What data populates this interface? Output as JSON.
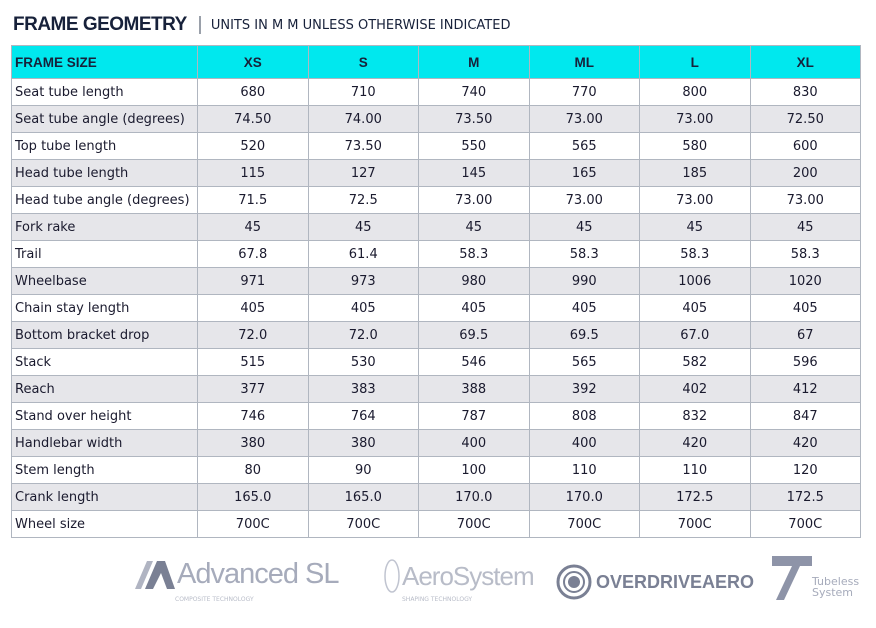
{
  "header": {
    "title": "FRAME GEOMETRY",
    "subtitle": "UNITS IN M M  UNLESS OTHERWISE INDICATED"
  },
  "table": {
    "columns": [
      "FRAME SIZE",
      "XS",
      "S",
      "M",
      "ML",
      "L",
      "XL"
    ],
    "rows": [
      [
        "Seat tube length",
        "680",
        "710",
        "740",
        "770",
        "800",
        "830"
      ],
      [
        "Seat tube angle (degrees)",
        "74.50",
        "74.00",
        "73.50",
        "73.00",
        "73.00",
        "72.50"
      ],
      [
        "Top tube length",
        "520",
        "73.50",
        "550",
        "565",
        "580",
        "600"
      ],
      [
        "Head tube length",
        "115",
        "127",
        "145",
        "165",
        "185",
        "200"
      ],
      [
        "Head tube angle (degrees)",
        "71.5",
        "72.5",
        "73.00",
        "73.00",
        "73.00",
        "73.00"
      ],
      [
        "Fork rake",
        "45",
        "45",
        "45",
        "45",
        "45",
        "45"
      ],
      [
        "Trail",
        "67.8",
        "61.4",
        "58.3",
        "58.3",
        "58.3",
        "58.3"
      ],
      [
        "Wheelbase",
        "971",
        "973",
        "980",
        "990",
        "1006",
        "1020"
      ],
      [
        "Chain stay length",
        "405",
        "405",
        "405",
        "405",
        "405",
        "405"
      ],
      [
        "Bottom bracket drop",
        "72.0",
        "72.0",
        "69.5",
        "69.5",
        "67.0",
        "67"
      ],
      [
        "Stack",
        "515",
        "530",
        "546",
        "565",
        "582",
        "596"
      ],
      [
        "Reach",
        "377",
        "383",
        "388",
        "392",
        "402",
        "412"
      ],
      [
        "Stand over height",
        "746",
        "764",
        "787",
        "808",
        "832",
        "847"
      ],
      [
        "Handlebar width",
        "380",
        "380",
        "400",
        "400",
        "420",
        "420"
      ],
      [
        "Stem length",
        "80",
        "90",
        "100",
        "110",
        "110",
        "120"
      ],
      [
        "Crank length",
        "165.0",
        "165.0",
        "170.0",
        "170.0",
        "172.5",
        "172.5"
      ],
      [
        "Wheel size",
        "700C",
        "700C",
        "700C",
        "700C",
        "700C",
        "700C"
      ]
    ]
  },
  "logos": {
    "advanced": "Advanced SL",
    "advanced_sub": "COMPOSITE TECHNOLOGY",
    "aero": "AeroSystem",
    "aero_sub": "SHAPING TECHNOLOGY",
    "overdrive": "OVERDRIVEAERO",
    "tubeless": "Tubeless",
    "tubeless2": "System"
  }
}
